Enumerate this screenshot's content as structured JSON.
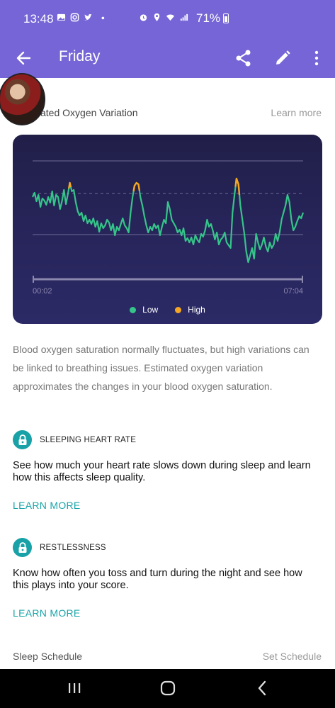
{
  "status_bar": {
    "time": "13:48",
    "battery": "71%",
    "icons": [
      "gallery-icon",
      "instagram-icon",
      "twitter-icon",
      "dot-icon",
      "alarm-icon",
      "location-icon",
      "wifi-icon",
      "signal-icon",
      "battery-icon"
    ]
  },
  "toolbar": {
    "title": "Friday",
    "icons": [
      "back-arrow-icon",
      "share-icon",
      "edit-pencil-icon",
      "more-vert-icon"
    ],
    "color": "#7565d6"
  },
  "section": {
    "title_visible": "ated Oxygen Variation",
    "learn_more": "Learn more"
  },
  "chart_data": {
    "type": "line",
    "x_start_label": "00:02",
    "x_end_label": "07:04",
    "series": [
      {
        "name": "Low",
        "color": "#35c489"
      },
      {
        "name": "High",
        "color": "#f5a623"
      }
    ],
    "reference_lines": 3,
    "values": [
      0.52,
      0.58,
      0.46,
      0.55,
      0.38,
      0.5,
      0.47,
      0.41,
      0.52,
      0.44,
      0.6,
      0.4,
      0.55,
      0.52,
      0.35,
      0.46,
      0.62,
      0.42,
      0.56,
      0.72,
      0.6,
      0.62,
      0.45,
      0.32,
      0.26,
      0.3,
      0.18,
      0.26,
      0.15,
      0.2,
      0.14,
      0.22,
      0.1,
      0.18,
      0.03,
      0.15,
      0.08,
      0.12,
      0.2,
      0.16,
      0.05,
      0.14,
      -0.02,
      0.1,
      0.05,
      0.14,
      0.22,
      0.12,
      0.08,
      0.02,
      0.3,
      0.52,
      0.68,
      0.72,
      0.7,
      0.52,
      0.4,
      0.25,
      0.12,
      0.02,
      0.1,
      0.05,
      0.14,
      0.08,
      0.12,
      -0.02,
      0.1,
      0.2,
      0.15,
      0.45,
      0.35,
      0.2,
      0.15,
      0.1,
      0.02,
      0.06,
      -0.02,
      0.08,
      -0.1,
      -0.06,
      -0.12,
      -0.05,
      -0.15,
      -0.02,
      -0.08,
      -0.12,
      0.0,
      -0.04,
      0.05,
      0.2,
      0.1,
      0.14,
      0.04,
      -0.08,
      0.02,
      -0.15,
      -0.08,
      -0.05,
      0.02,
      -0.12,
      -0.16,
      -0.2,
      0.3,
      0.55,
      0.78,
      0.7,
      0.4,
      0.2,
      0.0,
      -0.25,
      -0.4,
      -0.3,
      -0.2,
      -0.35,
      0.0,
      -0.12,
      -0.22,
      -0.15,
      -0.05,
      -0.18,
      -0.25,
      -0.12,
      -0.2,
      -0.15,
      0.0,
      -0.1,
      0.02,
      0.2,
      0.3,
      0.4,
      0.55,
      0.45,
      0.2,
      0.05,
      0.1,
      0.18,
      0.25,
      0.22,
      0.3
    ],
    "high_threshold": 0.68
  },
  "description": "Blood oxygen saturation normally fluctuates, but high variations can be linked to breathing issues. Estimated oxygen variation approximates the changes in your blood oxygen saturation.",
  "cards": [
    {
      "title": "SLEEPING HEART RATE",
      "text": "See how much your heart rate slows down during sleep and learn how this affects sleep quality.",
      "link": "LEARN MORE"
    },
    {
      "title": "RESTLESSNESS",
      "text": "Know how often you toss and turn during the night and see how this plays into your score.",
      "link": "LEARN MORE"
    }
  ],
  "schedule": {
    "label": "Sleep Schedule",
    "action": "Set Schedule"
  },
  "nav_bar": {
    "icons": [
      "recent-apps-icon",
      "home-icon",
      "back-icon"
    ]
  }
}
